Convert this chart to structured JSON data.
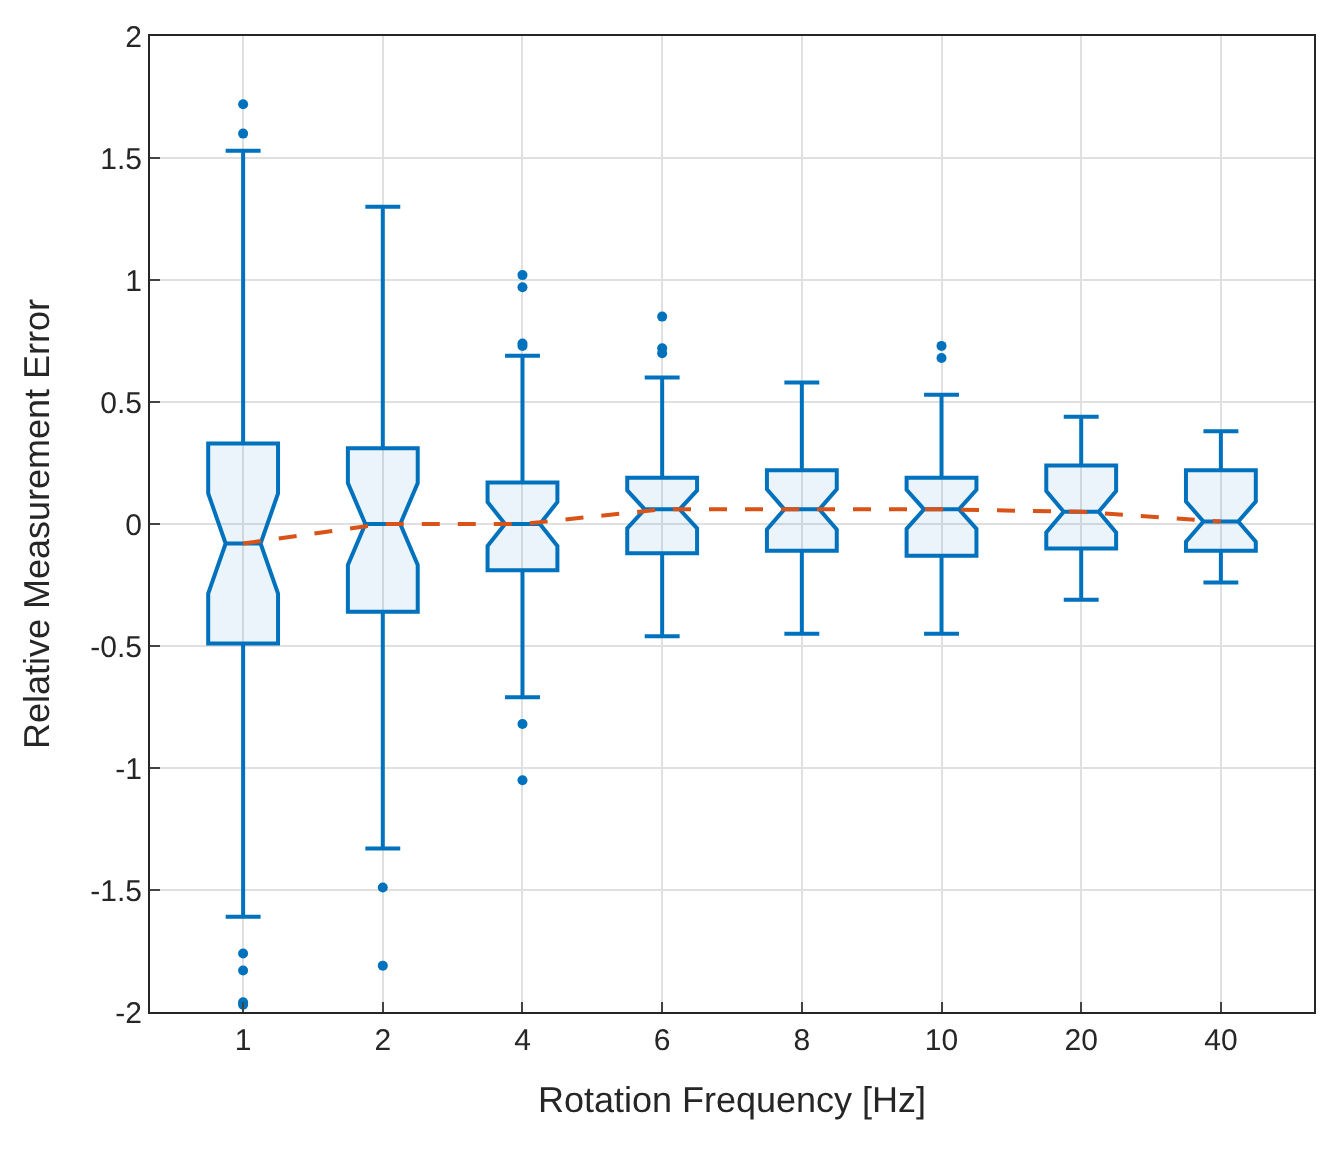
{
  "chart_data": {
    "type": "box",
    "xlabel": "Rotation Frequency [Hz]",
    "ylabel": "Relative Measurement Error",
    "categories": [
      "1",
      "2",
      "4",
      "6",
      "8",
      "10",
      "20",
      "40"
    ],
    "ylim": [
      -2,
      2
    ],
    "yticks": [
      -2,
      -1.5,
      -1,
      -0.5,
      0,
      0.5,
      1,
      1.5,
      2
    ],
    "grid": true,
    "series": [
      {
        "color": "#0072bd",
        "boxes": [
          {
            "low": -1.61,
            "q1": -0.49,
            "median": -0.08,
            "q3": 0.33,
            "high": 1.53,
            "outliers": [
              1.72,
              1.6,
              -1.76,
              -1.83,
              -1.96,
              -1.97
            ]
          },
          {
            "low": -1.33,
            "q1": -0.36,
            "median": 0.0,
            "q3": 0.31,
            "high": 1.3,
            "outliers": [
              -1.49,
              -1.81
            ]
          },
          {
            "low": -0.71,
            "q1": -0.19,
            "median": 0.0,
            "q3": 0.17,
            "high": 0.69,
            "outliers": [
              1.02,
              0.97,
              0.74,
              0.73,
              -0.82,
              -1.05
            ]
          },
          {
            "low": -0.46,
            "q1": -0.12,
            "median": 0.06,
            "q3": 0.19,
            "high": 0.6,
            "outliers": [
              0.85,
              0.72,
              0.7
            ]
          },
          {
            "low": -0.45,
            "q1": -0.11,
            "median": 0.06,
            "q3": 0.22,
            "high": 0.58
          },
          {
            "low": -0.45,
            "q1": -0.13,
            "median": 0.06,
            "q3": 0.19,
            "high": 0.53,
            "outliers": [
              0.73,
              0.68
            ]
          },
          {
            "low": -0.31,
            "q1": -0.1,
            "median": 0.05,
            "q3": 0.24,
            "high": 0.44
          },
          {
            "low": -0.24,
            "q1": -0.11,
            "median": 0.01,
            "q3": 0.22,
            "high": 0.38
          }
        ]
      },
      {
        "type": "line",
        "color": "#d95319",
        "line_style": "dashed",
        "marker": "none",
        "x": [
          "1",
          "2",
          "4",
          "6",
          "8",
          "10",
          "20",
          "40"
        ],
        "values": [
          -0.08,
          0.0,
          0.0,
          0.06,
          0.06,
          0.06,
          0.05,
          0.01
        ]
      }
    ]
  }
}
